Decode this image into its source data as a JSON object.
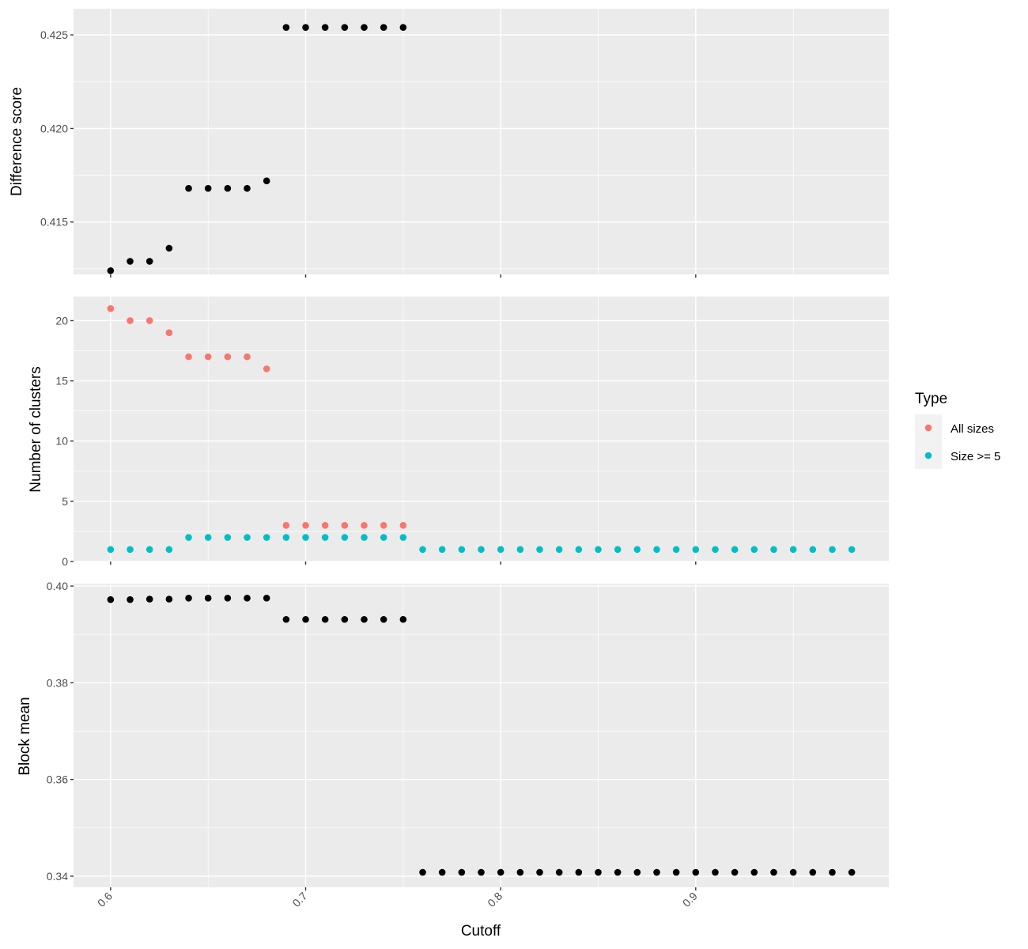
{
  "chart_data": [
    {
      "type": "scatter",
      "ylabel": "Difference score",
      "xlim": [
        0.581,
        0.999
      ],
      "ylim": [
        0.4122,
        0.4264
      ],
      "y_ticks": [
        "0.415",
        "0.420",
        "0.425"
      ],
      "y_tick_values": [
        0.415,
        0.42,
        0.425
      ],
      "series": [
        {
          "color": "#000000",
          "points": [
            [
              0.6,
              0.4124
            ],
            [
              0.61,
              0.4129
            ],
            [
              0.62,
              0.4129
            ],
            [
              0.63,
              0.4136
            ],
            [
              0.64,
              0.4168
            ],
            [
              0.65,
              0.4168
            ],
            [
              0.66,
              0.4168
            ],
            [
              0.67,
              0.4168
            ],
            [
              0.68,
              0.4172
            ],
            [
              0.69,
              0.4254
            ],
            [
              0.7,
              0.4254
            ],
            [
              0.71,
              0.4254
            ],
            [
              0.72,
              0.4254
            ],
            [
              0.73,
              0.4254
            ],
            [
              0.74,
              0.4254
            ],
            [
              0.75,
              0.4254
            ]
          ]
        }
      ]
    },
    {
      "type": "scatter",
      "ylabel": "Number of clusters",
      "xlim": [
        0.581,
        0.999
      ],
      "ylim": [
        0,
        22
      ],
      "y_ticks": [
        "0",
        "5",
        "10",
        "15",
        "20"
      ],
      "y_tick_values": [
        0,
        5,
        10,
        15,
        20
      ],
      "series": [
        {
          "name": "All sizes",
          "color": "#F8766D",
          "points": [
            [
              0.6,
              21
            ],
            [
              0.61,
              20
            ],
            [
              0.62,
              20
            ],
            [
              0.63,
              19
            ],
            [
              0.64,
              17
            ],
            [
              0.65,
              17
            ],
            [
              0.66,
              17
            ],
            [
              0.67,
              17
            ],
            [
              0.68,
              16
            ],
            [
              0.69,
              3
            ],
            [
              0.7,
              3
            ],
            [
              0.71,
              3
            ],
            [
              0.72,
              3
            ],
            [
              0.73,
              3
            ],
            [
              0.74,
              3
            ],
            [
              0.75,
              3
            ]
          ]
        },
        {
          "name": "Size >= 5",
          "color": "#00BFC4",
          "points": [
            [
              0.6,
              1
            ],
            [
              0.61,
              1
            ],
            [
              0.62,
              1
            ],
            [
              0.63,
              1
            ],
            [
              0.64,
              2
            ],
            [
              0.65,
              2
            ],
            [
              0.66,
              2
            ],
            [
              0.67,
              2
            ],
            [
              0.68,
              2
            ],
            [
              0.69,
              2
            ],
            [
              0.7,
              2
            ],
            [
              0.71,
              2
            ],
            [
              0.72,
              2
            ],
            [
              0.73,
              2
            ],
            [
              0.74,
              2
            ],
            [
              0.75,
              2
            ],
            [
              0.76,
              1
            ],
            [
              0.77,
              1
            ],
            [
              0.78,
              1
            ],
            [
              0.79,
              1
            ],
            [
              0.8,
              1
            ],
            [
              0.81,
              1
            ],
            [
              0.82,
              1
            ],
            [
              0.83,
              1
            ],
            [
              0.84,
              1
            ],
            [
              0.85,
              1
            ],
            [
              0.86,
              1
            ],
            [
              0.87,
              1
            ],
            [
              0.88,
              1
            ],
            [
              0.89,
              1
            ],
            [
              0.9,
              1
            ],
            [
              0.91,
              1
            ],
            [
              0.92,
              1
            ],
            [
              0.93,
              1
            ],
            [
              0.94,
              1
            ],
            [
              0.95,
              1
            ],
            [
              0.96,
              1
            ],
            [
              0.97,
              1
            ],
            [
              0.98,
              1
            ]
          ]
        }
      ]
    },
    {
      "type": "scatter",
      "ylabel": "Block mean",
      "xlabel": "Cutoff",
      "xlim": [
        0.581,
        0.999
      ],
      "ylim": [
        0.3377,
        0.4005
      ],
      "y_ticks": [
        "0.34",
        "0.36",
        "0.38",
        "0.40"
      ],
      "y_tick_values": [
        0.34,
        0.36,
        0.38,
        0.4
      ],
      "x_ticks": [
        "0.6",
        "0.7",
        "0.8",
        "0.9"
      ],
      "x_tick_values": [
        0.6,
        0.7,
        0.8,
        0.9
      ],
      "series": [
        {
          "color": "#000000",
          "points": [
            [
              0.6,
              0.3972
            ],
            [
              0.61,
              0.3972
            ],
            [
              0.62,
              0.3973
            ],
            [
              0.63,
              0.3973
            ],
            [
              0.64,
              0.3975
            ],
            [
              0.65,
              0.3975
            ],
            [
              0.66,
              0.3975
            ],
            [
              0.67,
              0.3975
            ],
            [
              0.68,
              0.3975
            ],
            [
              0.69,
              0.3931
            ],
            [
              0.7,
              0.3931
            ],
            [
              0.71,
              0.3931
            ],
            [
              0.72,
              0.3931
            ],
            [
              0.73,
              0.3931
            ],
            [
              0.74,
              0.3931
            ],
            [
              0.75,
              0.3931
            ],
            [
              0.76,
              0.3408
            ],
            [
              0.77,
              0.3408
            ],
            [
              0.78,
              0.3408
            ],
            [
              0.79,
              0.3408
            ],
            [
              0.8,
              0.3408
            ],
            [
              0.81,
              0.3408
            ],
            [
              0.82,
              0.3408
            ],
            [
              0.83,
              0.3408
            ],
            [
              0.84,
              0.3408
            ],
            [
              0.85,
              0.3408
            ],
            [
              0.86,
              0.3408
            ],
            [
              0.87,
              0.3408
            ],
            [
              0.88,
              0.3408
            ],
            [
              0.89,
              0.3408
            ],
            [
              0.9,
              0.3408
            ],
            [
              0.91,
              0.3408
            ],
            [
              0.92,
              0.3408
            ],
            [
              0.93,
              0.3408
            ],
            [
              0.94,
              0.3408
            ],
            [
              0.95,
              0.3408
            ],
            [
              0.96,
              0.3408
            ],
            [
              0.97,
              0.3408
            ],
            [
              0.98,
              0.3408
            ]
          ]
        }
      ]
    }
  ],
  "legend": {
    "title": "Type",
    "placement": "right",
    "items": [
      {
        "label": "All sizes",
        "color": "#F8766D"
      },
      {
        "label": "Size >= 5",
        "color": "#00BFC4"
      }
    ]
  },
  "theme": {
    "panel_background": "#EBEBEB",
    "grid_color": "#FFFFFF",
    "grid": true
  }
}
